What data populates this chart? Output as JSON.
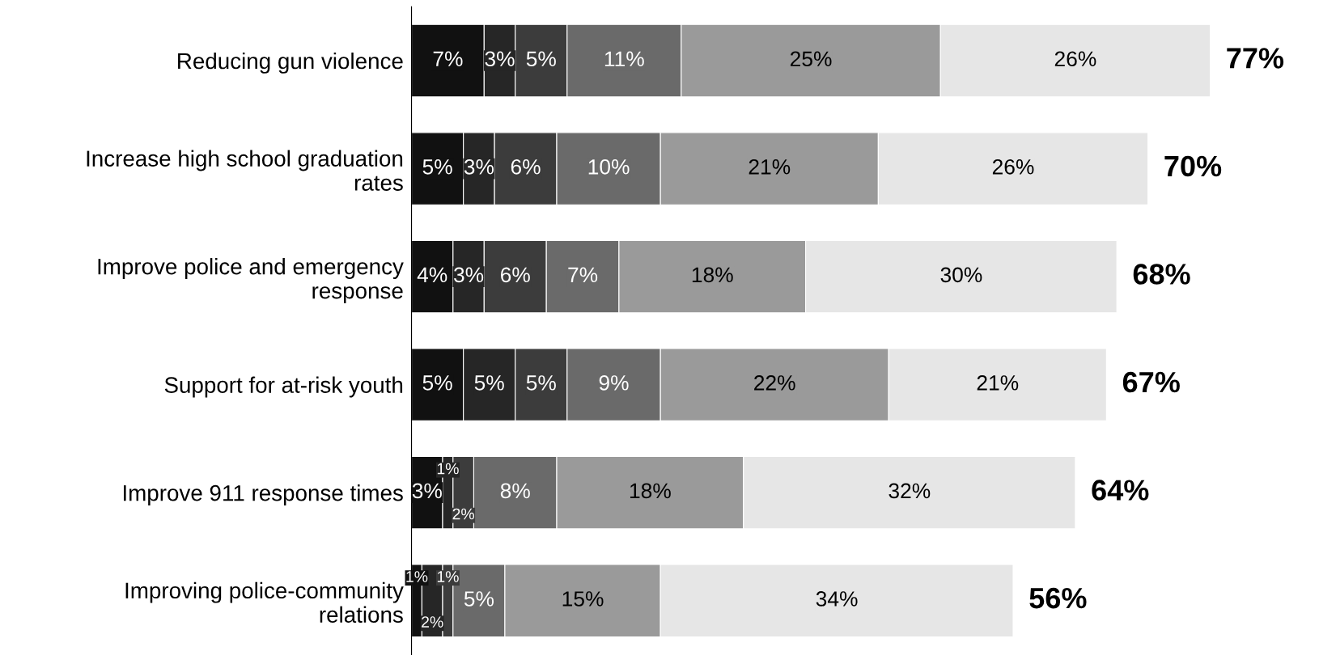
{
  "chart_data": {
    "type": "bar",
    "orientation": "horizontal",
    "stacked": true,
    "tick_labels": "y",
    "categories": [
      "Reducing gun violence",
      "Increase high school graduation rates",
      "Improve police and emergency response",
      "Support for at-risk youth",
      "Improve 911 response times",
      "Improving police-community relations"
    ],
    "series": [
      {
        "color": "#111111",
        "values": [
          7,
          5,
          4,
          5,
          3,
          1
        ],
        "value_labels": [
          "7%",
          "5%",
          "4%",
          "5%",
          "3%",
          "1%"
        ]
      },
      {
        "color": "#262626",
        "values": [
          3,
          3,
          3,
          5,
          1,
          2
        ],
        "value_labels": [
          "3%",
          "3%",
          "3%",
          "5%",
          "1%",
          "2%"
        ]
      },
      {
        "color": "#3c3c3c",
        "values": [
          5,
          6,
          6,
          5,
          2,
          1
        ],
        "value_labels": [
          "5%",
          "6%",
          "6%",
          "5%",
          "2%",
          "1%"
        ]
      },
      {
        "color": "#6a6a6a",
        "values": [
          11,
          10,
          7,
          9,
          8,
          5
        ],
        "value_labels": [
          "11%",
          "10%",
          "7%",
          "9%",
          "8%",
          "5%"
        ]
      },
      {
        "color": "#9a9a9a",
        "values": [
          25,
          21,
          18,
          22,
          18,
          15
        ],
        "value_labels": [
          "25%",
          "21%",
          "18%",
          "22%",
          "18%",
          "15%"
        ]
      },
      {
        "color": "#e6e6e6",
        "values": [
          26,
          26,
          30,
          21,
          32,
          34
        ],
        "value_labels": [
          "26%",
          "26%",
          "30%",
          "21%",
          "32%",
          "34%"
        ]
      }
    ],
    "totals": [
      "77%",
      "70%",
      "68%",
      "67%",
      "64%",
      "56%"
    ]
  }
}
